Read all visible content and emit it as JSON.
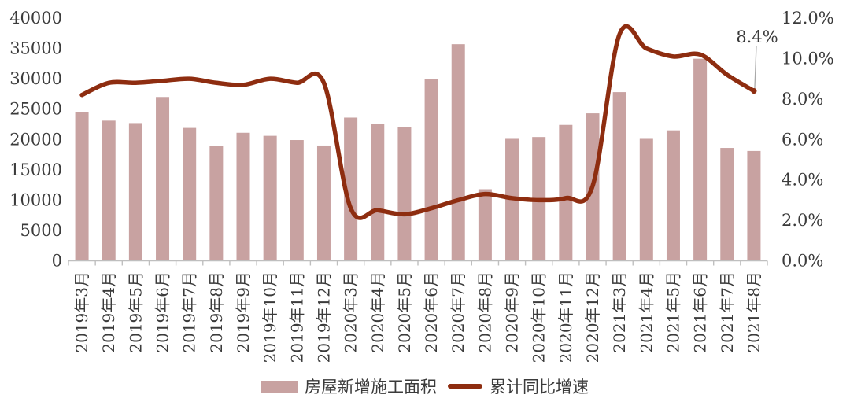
{
  "chart_data": {
    "type": "bar+line",
    "title": "",
    "categories": [
      "2019年3月",
      "2019年4月",
      "2019年5月",
      "2019年6月",
      "2019年7月",
      "2019年8月",
      "2019年9月",
      "2019年10月",
      "2019年11月",
      "2019年12月",
      "2020年3月",
      "2020年4月",
      "2020年5月",
      "2020年6月",
      "2020年7月",
      "2020年8月",
      "2020年9月",
      "2020年10月",
      "2020年11月",
      "2020年12月",
      "2021年3月",
      "2021年4月",
      "2021年5月",
      "2021年6月",
      "2021年7月",
      "2021年8月"
    ],
    "series": [
      {
        "name": "房屋新增施工面积",
        "type": "bar",
        "axis": "left",
        "values": [
          24500,
          23100,
          22700,
          27000,
          21900,
          18900,
          21100,
          20600,
          19900,
          19000,
          23600,
          22600,
          22000,
          30000,
          35700,
          11800,
          20100,
          20400,
          22400,
          24300,
          27800,
          20100,
          21500,
          33300,
          18600,
          18100
        ]
      },
      {
        "name": "累计同比增速",
        "type": "line",
        "axis": "right",
        "values": [
          8.2,
          8.8,
          8.8,
          8.9,
          9.0,
          8.8,
          8.7,
          9.0,
          8.8,
          8.8,
          2.6,
          2.5,
          2.3,
          2.6,
          3.0,
          3.3,
          3.1,
          3.0,
          3.1,
          3.7,
          11.2,
          10.5,
          10.1,
          10.2,
          9.2,
          8.4
        ]
      }
    ],
    "left_axis": {
      "min": 0,
      "max": 40000,
      "step": 5000,
      "tick_labels": [
        "0",
        "5000",
        "10000",
        "15000",
        "20000",
        "25000",
        "30000",
        "35000",
        "40000"
      ]
    },
    "right_axis": {
      "min": 0,
      "max": 12,
      "step": 2,
      "tick_labels": [
        "0.0%",
        "2.0%",
        "4.0%",
        "6.0%",
        "8.0%",
        "10.0%",
        "12.0%"
      ]
    },
    "annotation": {
      "text": "8.4%",
      "target_category": "2021年8月",
      "target_value": 8.4
    },
    "legend_position": "bottom",
    "grid": false
  },
  "legend": {
    "bar_label": "房屋新增施工面积",
    "line_label": "累计同比增速"
  },
  "colors": {
    "bar": "#C8A2A1",
    "line": "#8E2D10",
    "text": "#3B3B3B",
    "axis": "#BFBFBF",
    "leader": "#A9A9A9"
  }
}
